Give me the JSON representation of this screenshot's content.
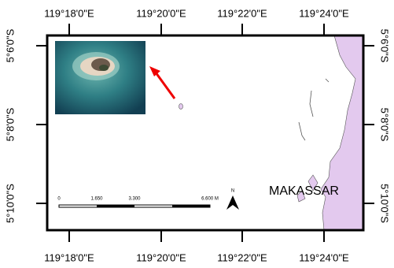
{
  "map": {
    "x_labels": [
      "119°18'0\"E",
      "119°20'0\"E",
      "119°22'0\"E",
      "119°24'0\"E"
    ],
    "y_labels": [
      "5°6'0\"S",
      "5°8'0\"S",
      "5°10'0\"S"
    ],
    "place_label": "MAKASSAR",
    "scale_bar": {
      "labels": [
        "0",
        "1.650",
        "3.300",
        "6.600 M"
      ]
    },
    "north_label": "N"
  }
}
